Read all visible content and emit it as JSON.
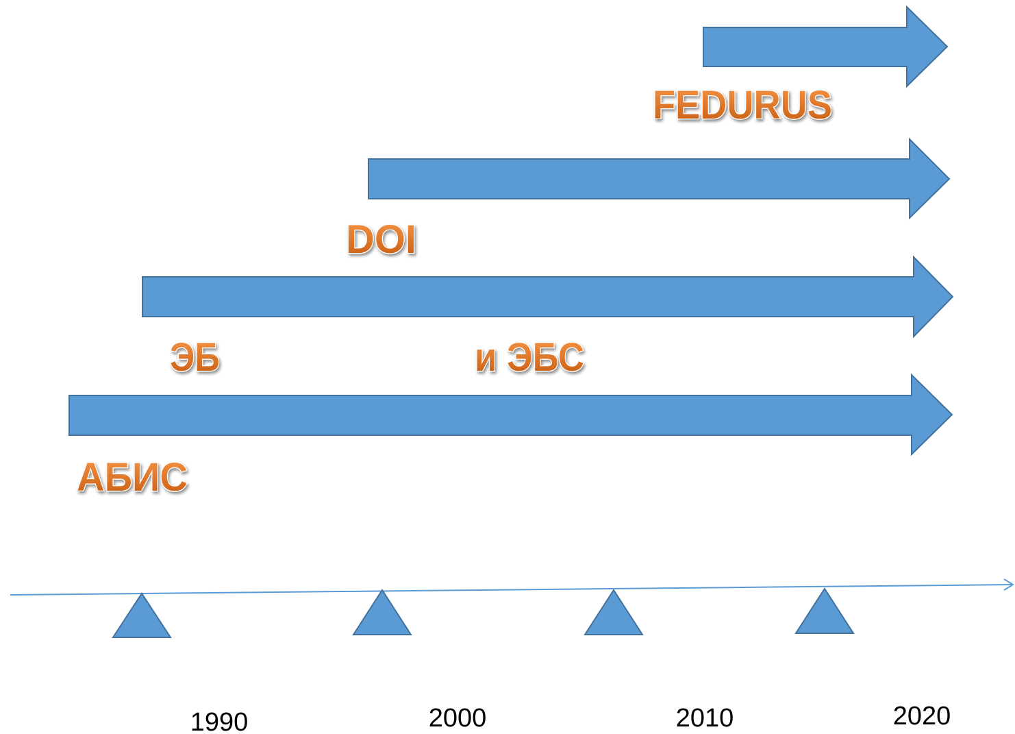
{
  "labels": [
    "FEDURUS",
    "DOI",
    "ЭБ",
    "и ЭБС",
    "АБИС"
  ],
  "timeline": {
    "years": [
      "1990",
      "2000",
      "2010",
      "2020"
    ]
  }
}
